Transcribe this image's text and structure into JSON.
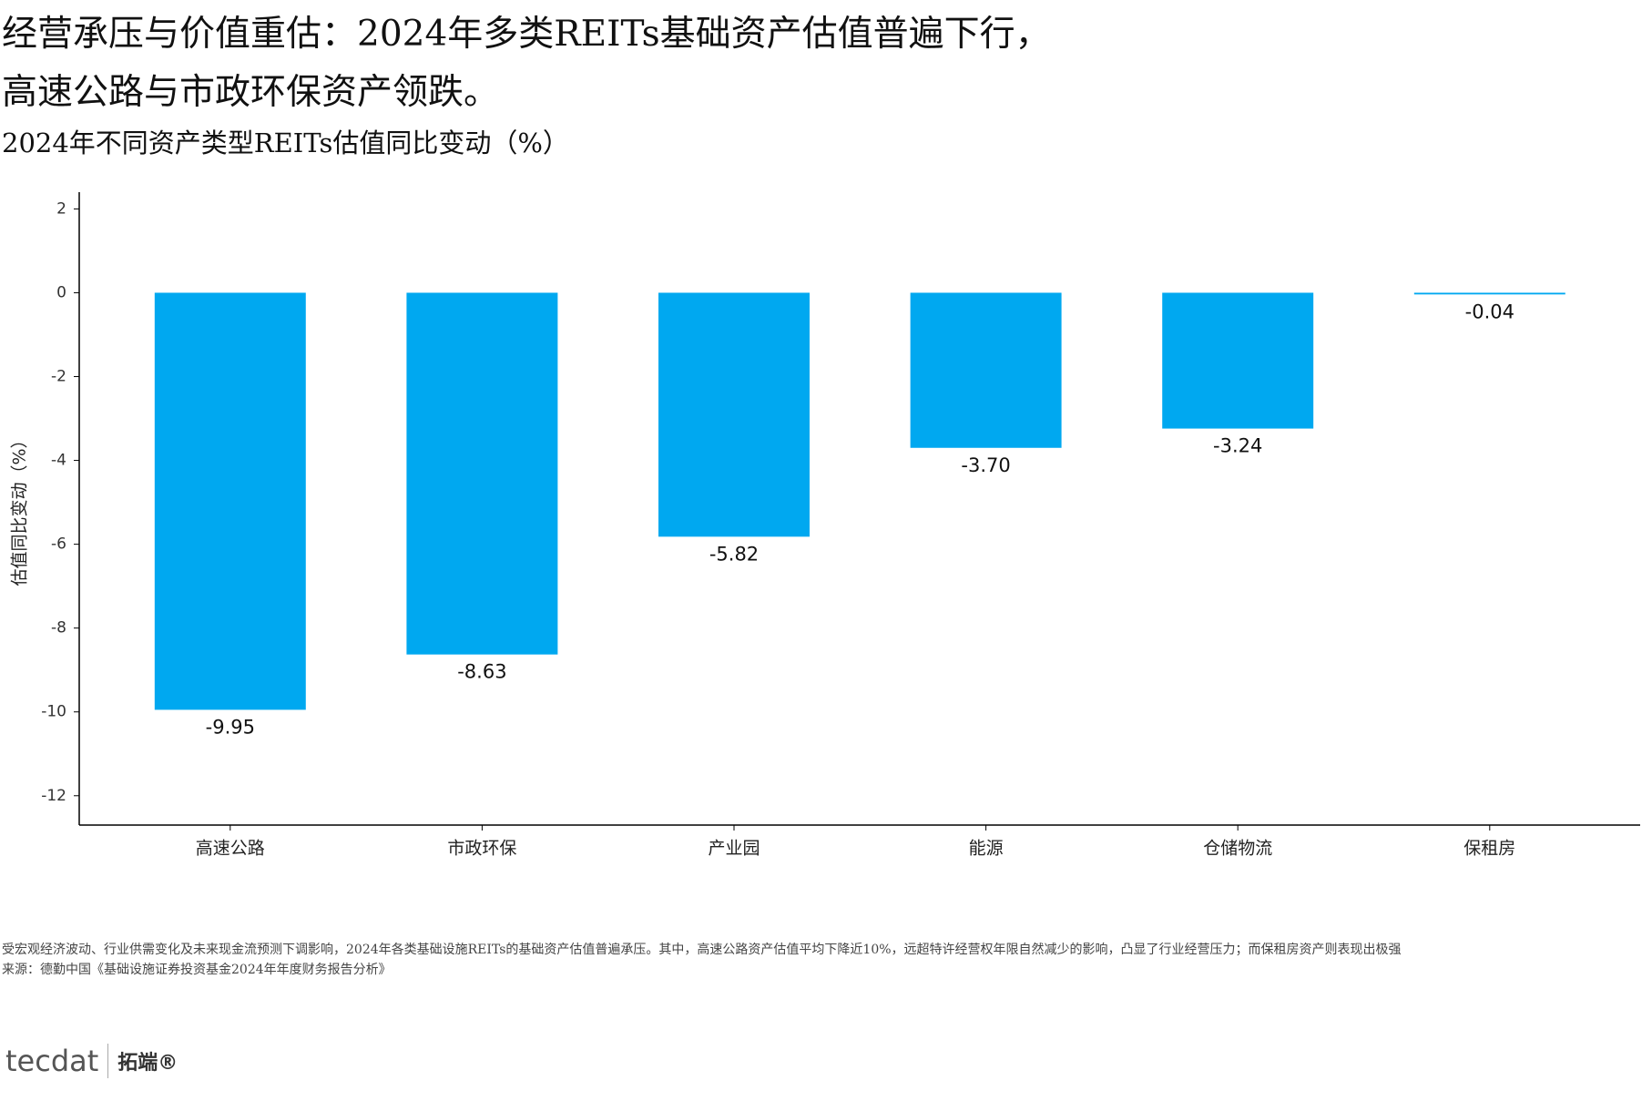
{
  "chart_data": {
    "type": "bar",
    "title": [
      "经营承压与价值重估：2024年多类REITs基础资产估值普遍下行，",
      "高速公路与市政环保资产领跌。"
    ],
    "subtitle": "2024年不同资产类型REITs估值同比变动（%）",
    "y_label": "估值同比变动（%）",
    "categories": [
      "高速公路",
      "市政环保",
      "产业园",
      "能源",
      "仓储物流",
      "保租房"
    ],
    "values": [
      -9.95,
      -8.63,
      -5.82,
      -3.7,
      -3.24,
      -0.04
    ],
    "value_labels": [
      "-9.95",
      "-8.63",
      "-5.82",
      "-3.70",
      "-3.24",
      "-0.04"
    ],
    "color": "#00a8f0",
    "ylim": [
      -12.7,
      2.4
    ],
    "yticks": [
      -12,
      -10,
      -8,
      -6,
      -4,
      -2,
      0,
      2
    ],
    "grid": false,
    "note": "受宏观经济波动、行业供需变化及未来现金流预测下调影响，2024年各类基础设施REITs的基础资产估值普遍承压。其中，高速公路资产估值平均下降近10%，远超特许经营权年限自然减少的影响，凸显了行业经营压力；而保租房资产则表现出极强",
    "source": "来源：德勤中国《基础设施证券投资基金2024年年度财务报告分析》"
  },
  "logo": {
    "mark": "tecdat",
    "brand": "拓端®"
  }
}
